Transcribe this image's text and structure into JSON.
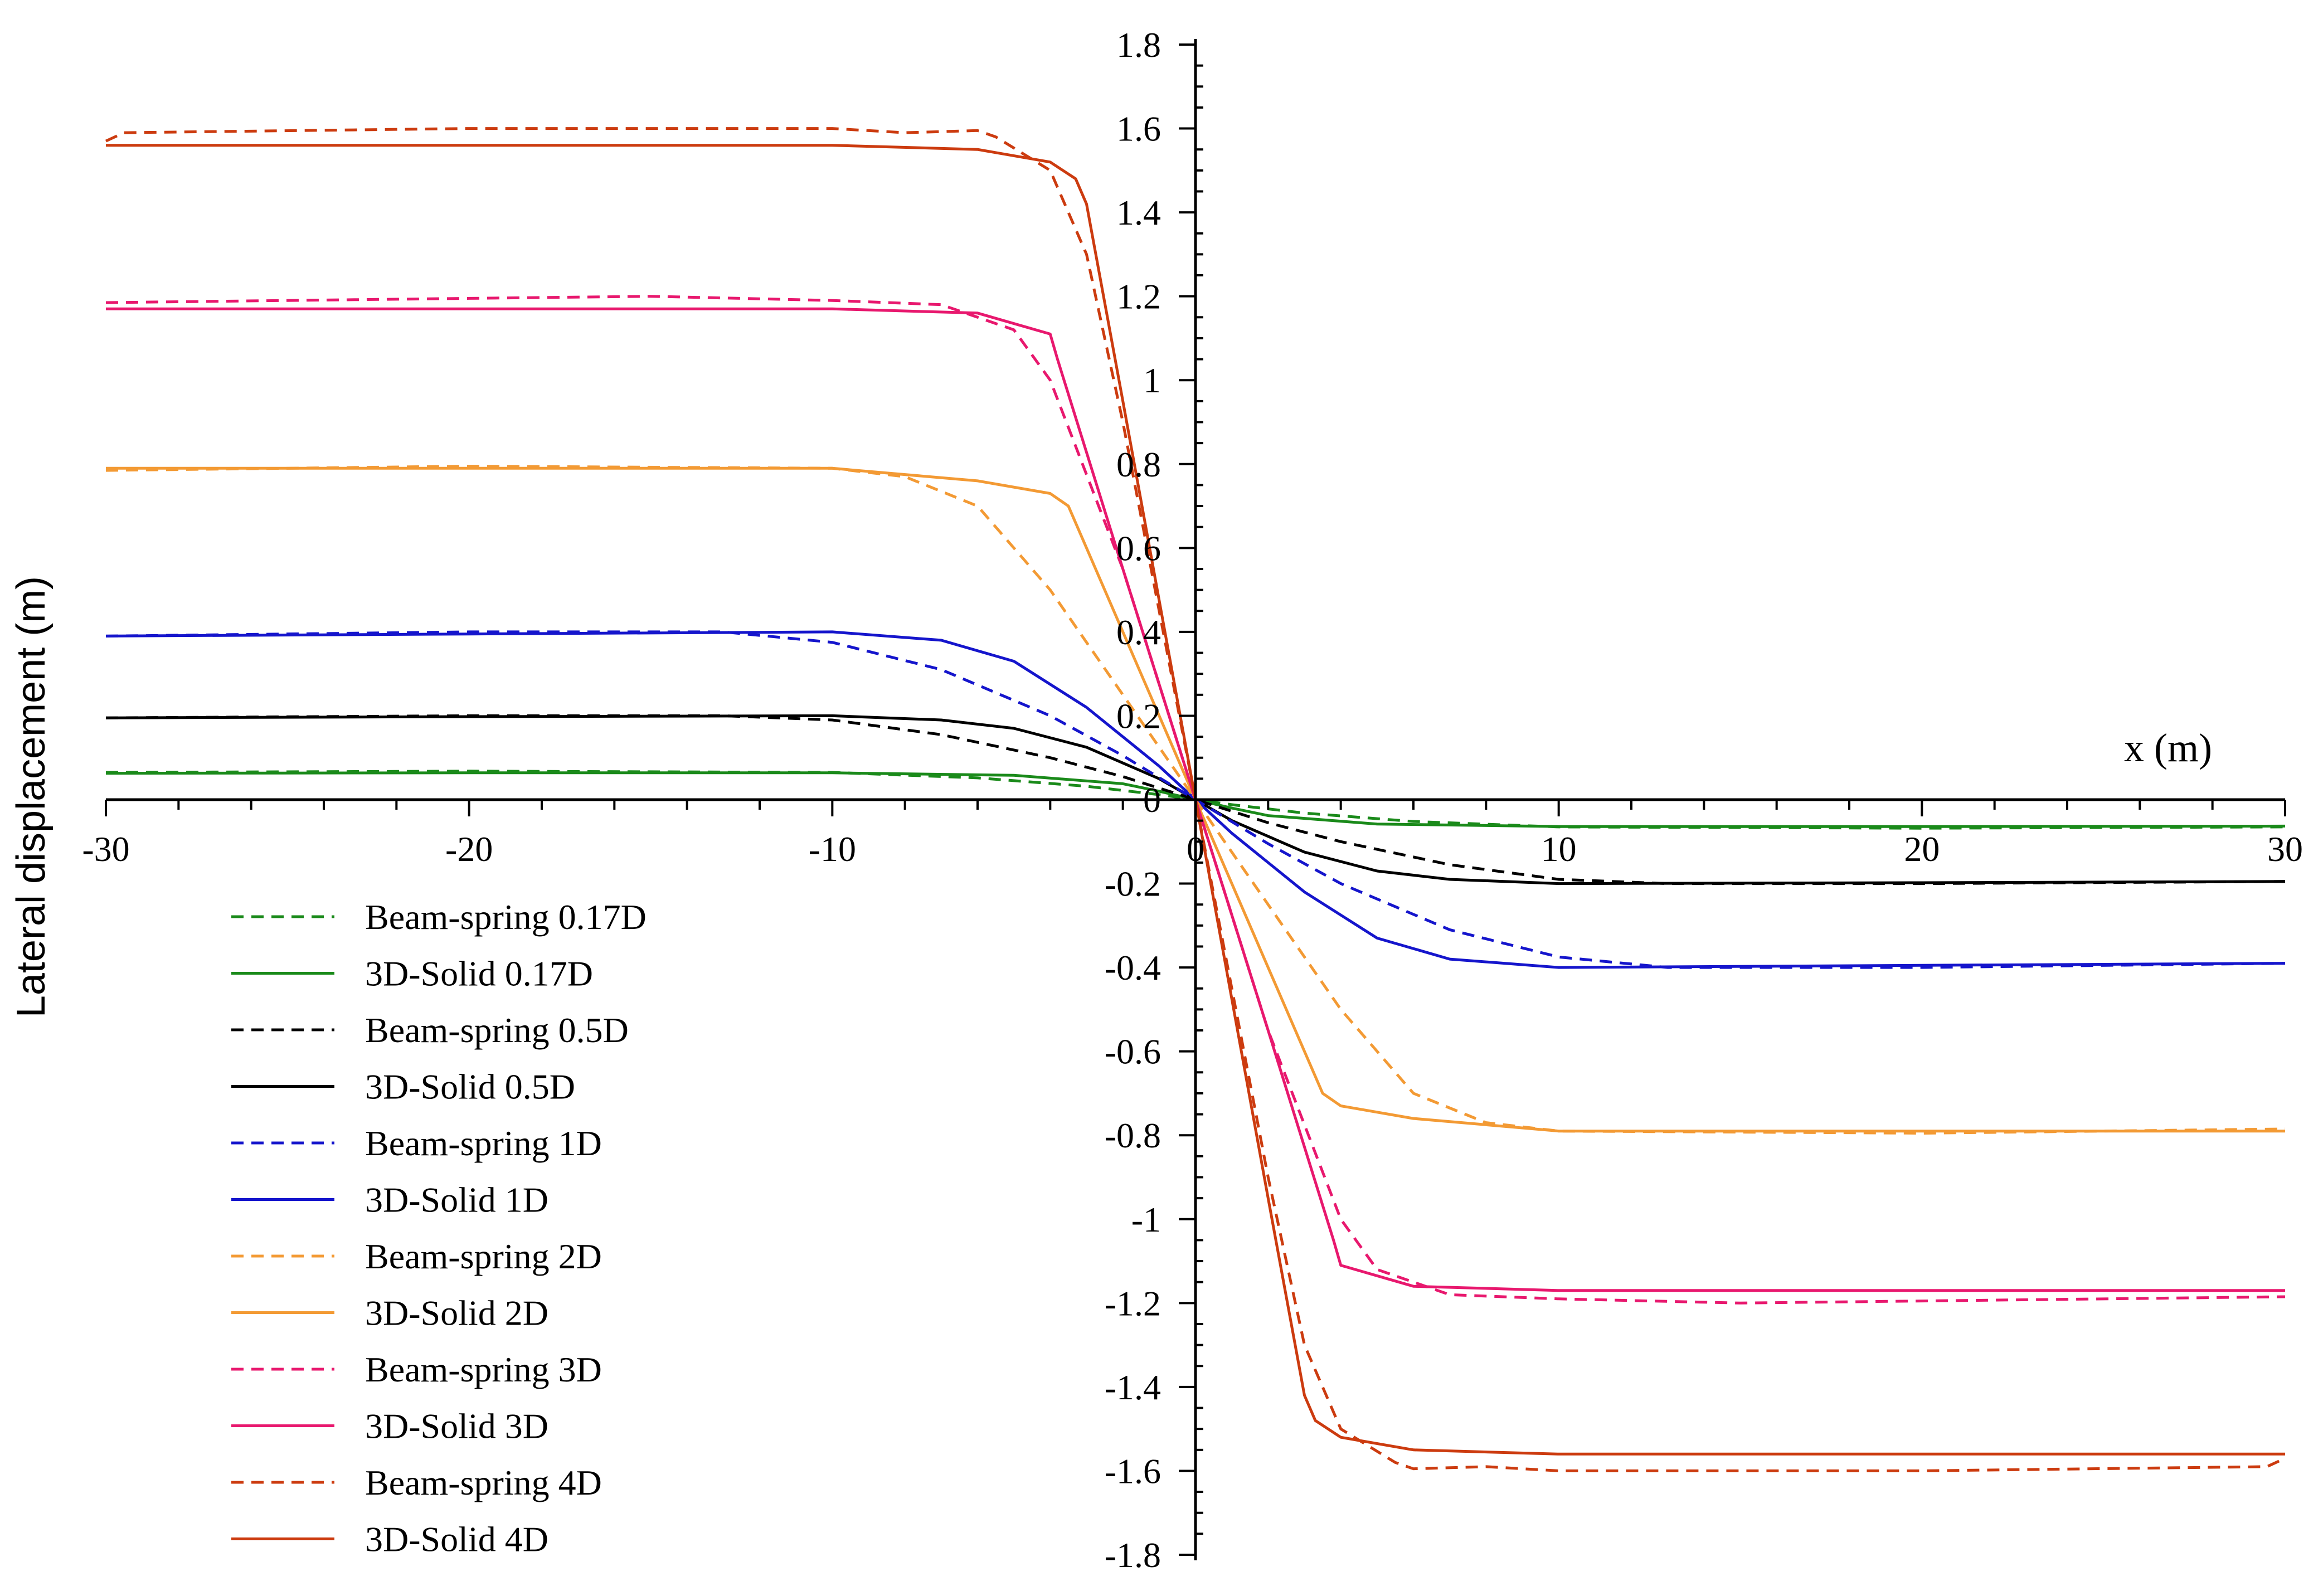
{
  "chart_data": {
    "type": "line",
    "title": "",
    "xlabel": "x (m)",
    "ylabel": "Lateral displacement (m)",
    "xlim": [
      -30,
      30
    ],
    "ylim": [
      -1.8,
      1.8
    ],
    "x_ticks": [
      -30,
      -20,
      -10,
      0,
      10,
      20,
      30
    ],
    "y_ticks": [
      -1.8,
      -1.6,
      -1.4,
      -1.2,
      -1,
      -0.8,
      -0.6,
      -0.4,
      -0.2,
      0,
      0.2,
      0.4,
      0.6,
      0.8,
      1,
      1.2,
      1.4,
      1.6,
      1.8
    ],
    "legend_position": "bottom-left",
    "grid": false,
    "series": [
      {
        "name": "Beam-spring 0.17D",
        "color": "#1a8a1a",
        "dash": true,
        "x": [
          -30,
          -20,
          -10,
          -6,
          -3,
          -1,
          0,
          1,
          3,
          6,
          10,
          20,
          30
        ],
        "y": [
          0.065,
          0.068,
          0.065,
          0.052,
          0.032,
          0.012,
          0,
          -0.012,
          -0.032,
          -0.052,
          -0.065,
          -0.068,
          -0.065
        ]
      },
      {
        "name": "3D-Solid 0.17D",
        "color": "#1a8a1a",
        "dash": false,
        "x": [
          -30,
          -20,
          -10,
          -5,
          -2,
          -1,
          0,
          1,
          2,
          5,
          10,
          20,
          30
        ],
        "y": [
          0.063,
          0.064,
          0.064,
          0.058,
          0.038,
          0.02,
          0,
          -0.02,
          -0.038,
          -0.058,
          -0.064,
          -0.064,
          -0.063
        ]
      },
      {
        "name": "Beam-spring 0.5D",
        "color": "#000000",
        "dash": true,
        "x": [
          -30,
          -20,
          -13,
          -10,
          -7,
          -4,
          -2,
          0,
          2,
          4,
          7,
          10,
          13,
          20,
          30
        ],
        "y": [
          0.195,
          0.2,
          0.2,
          0.19,
          0.155,
          0.1,
          0.055,
          0,
          -0.055,
          -0.1,
          -0.155,
          -0.19,
          -0.2,
          -0.2,
          -0.195
        ]
      },
      {
        "name": "3D-Solid 0.5D",
        "color": "#000000",
        "dash": false,
        "x": [
          -30,
          -20,
          -10,
          -7,
          -5,
          -3,
          -1,
          0,
          1,
          3,
          5,
          7,
          10,
          20,
          30
        ],
        "y": [
          0.195,
          0.198,
          0.2,
          0.19,
          0.17,
          0.125,
          0.05,
          0,
          -0.05,
          -0.125,
          -0.17,
          -0.19,
          -0.2,
          -0.198,
          -0.195
        ]
      },
      {
        "name": "Beam-spring 1D",
        "color": "#1515cc",
        "dash": true,
        "x": [
          -30,
          -20,
          -13,
          -10,
          -7,
          -4,
          -2,
          0,
          2,
          4,
          7,
          10,
          13,
          20,
          30
        ],
        "y": [
          0.39,
          0.4,
          0.4,
          0.375,
          0.31,
          0.2,
          0.105,
          0,
          -0.105,
          -0.2,
          -0.31,
          -0.375,
          -0.4,
          -0.4,
          -0.39
        ]
      },
      {
        "name": "3D-Solid 1D",
        "color": "#1515cc",
        "dash": false,
        "x": [
          -30,
          -20,
          -10,
          -7,
          -5,
          -3,
          -1,
          0,
          1,
          3,
          5,
          7,
          10,
          20,
          30
        ],
        "y": [
          0.39,
          0.395,
          0.4,
          0.38,
          0.33,
          0.22,
          0.08,
          0,
          -0.08,
          -0.22,
          -0.33,
          -0.38,
          -0.4,
          -0.395,
          -0.39
        ]
      },
      {
        "name": "Beam-spring 2D",
        "color": "#f39a34",
        "dash": true,
        "x": [
          -30,
          -20,
          -10,
          -8,
          -6,
          -4,
          -2,
          0,
          2,
          4,
          6,
          8,
          10,
          20,
          30
        ],
        "y": [
          0.785,
          0.795,
          0.79,
          0.77,
          0.7,
          0.5,
          0.25,
          0,
          -0.25,
          -0.5,
          -0.7,
          -0.77,
          -0.79,
          -0.795,
          -0.785
        ]
      },
      {
        "name": "3D-Solid 2D",
        "color": "#f39a34",
        "dash": false,
        "x": [
          -30,
          -20,
          -10,
          -6,
          -4,
          -3.5,
          -2,
          0,
          2,
          3.5,
          4,
          6,
          10,
          20,
          30
        ],
        "y": [
          0.79,
          0.79,
          0.79,
          0.76,
          0.73,
          0.7,
          0.4,
          0,
          -0.4,
          -0.7,
          -0.73,
          -0.76,
          -0.79,
          -0.79,
          -0.79
        ]
      },
      {
        "name": "Beam-spring 3D",
        "color": "#e8186e",
        "dash": true,
        "x": [
          -30,
          -20,
          -15,
          -10,
          -7,
          -5,
          -4,
          -2,
          0,
          2,
          4,
          5,
          7,
          10,
          15,
          20,
          30
        ],
        "y": [
          1.185,
          1.195,
          1.2,
          1.19,
          1.18,
          1.12,
          1.0,
          0.55,
          0,
          -0.55,
          -1.0,
          -1.12,
          -1.18,
          -1.19,
          -1.2,
          -1.195,
          -1.185
        ]
      },
      {
        "name": "3D-Solid 3D",
        "color": "#e8186e",
        "dash": false,
        "x": [
          -30,
          -20,
          -10,
          -6,
          -4,
          -3.8,
          -2,
          0,
          2,
          3.8,
          4,
          6,
          10,
          20,
          30
        ],
        "y": [
          1.17,
          1.17,
          1.17,
          1.16,
          1.11,
          1.05,
          0.55,
          0,
          -0.55,
          -1.05,
          -1.11,
          -1.16,
          -1.17,
          -1.17,
          -1.17
        ]
      },
      {
        "name": "Beam-spring 4D",
        "color": "#cc3b0f",
        "dash": true,
        "x": [
          -30,
          -29.5,
          -20,
          -10,
          -8,
          -6,
          -5.5,
          -4,
          -3,
          -2,
          0,
          2,
          3,
          4,
          5.5,
          6,
          8,
          10,
          20,
          29.5,
          30
        ],
        "y": [
          1.57,
          1.59,
          1.6,
          1.6,
          1.59,
          1.595,
          1.58,
          1.5,
          1.3,
          0.9,
          0,
          -0.9,
          -1.3,
          -1.5,
          -1.58,
          -1.595,
          -1.59,
          -1.6,
          -1.6,
          -1.59,
          -1.57
        ]
      },
      {
        "name": "3D-Solid 4D",
        "color": "#cc3b0f",
        "dash": false,
        "x": [
          -30,
          -20,
          -10,
          -6,
          -4,
          -3.3,
          -3,
          -2,
          0,
          2,
          3,
          3.3,
          4,
          6,
          10,
          20,
          30
        ],
        "y": [
          1.56,
          1.56,
          1.56,
          1.55,
          1.52,
          1.48,
          1.42,
          0.95,
          0,
          -0.95,
          -1.42,
          -1.48,
          -1.52,
          -1.55,
          -1.56,
          -1.56,
          -1.56
        ]
      }
    ]
  }
}
